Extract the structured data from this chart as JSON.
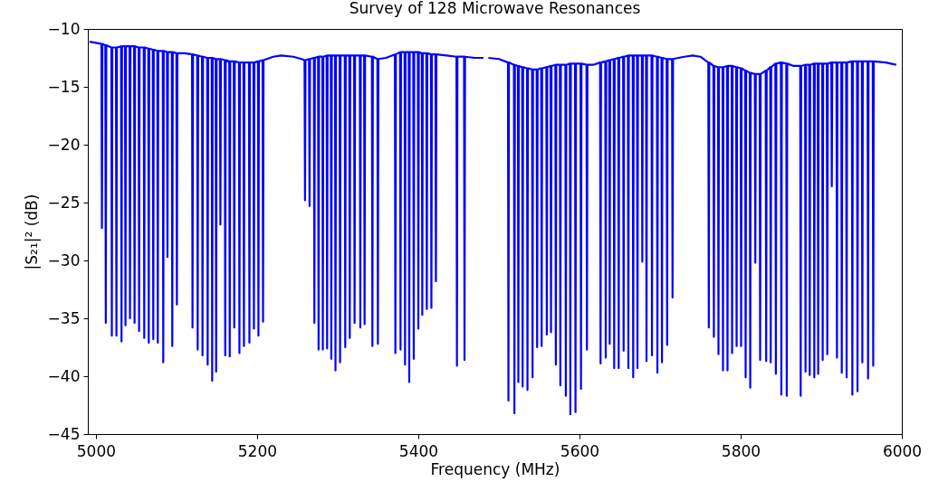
{
  "chart_data": {
    "type": "line",
    "title": "Survey of 128 Microwave Resonances",
    "xlabel": "Frequency (MHz)",
    "ylabel": "|S₂₁|²  (dB)",
    "xlim": [
      4990,
      6000
    ],
    "xticks": [
      5000,
      5200,
      5400,
      5600,
      5800,
      6000
    ],
    "ylim": [
      -45,
      -10
    ],
    "yticks": [
      -45,
      -40,
      -35,
      -30,
      -25,
      -20,
      -15,
      -10
    ],
    "grid": false,
    "line_style": "solid",
    "x": [
      4992,
      5000,
      5006.9,
      5007.5,
      5008.1,
      5011.7,
      5012.3,
      5012.9,
      5019.2,
      5019.8,
      5020.4,
      5024.9,
      5025.5,
      5026.1,
      5031.2,
      5031.8,
      5032.4,
      5036.1,
      5036.7,
      5037.3,
      5041.7,
      5042.3,
      5042.9,
      5047.4,
      5048.0,
      5048.6,
      5053.0,
      5053.6,
      5054.2,
      5059.4,
      5060.0,
      5060.6,
      5065.0,
      5065.6,
      5066.2,
      5070.6,
      5071.2,
      5071.8,
      5076.2,
      5076.8,
      5077.4,
      5083.0,
      5083.6,
      5084.2,
      5088.2,
      5088.8,
      5089.4,
      5094.2,
      5094.8,
      5095.4,
      5099.9,
      5100.5,
      5101.1,
      5110,
      5119.3,
      5119.9,
      5120.5,
      5125.7,
      5126.3,
      5126.9,
      5131.7,
      5132.3,
      5132.9,
      5138.1,
      5138.7,
      5139.3,
      5143.7,
      5144.3,
      5144.9,
      5148.6,
      5149.2,
      5149.8,
      5153.9,
      5154.5,
      5155.1,
      5159.9,
      5160.5,
      5161.1,
      5165.5,
      5166.1,
      5166.7,
      5171.1,
      5171.7,
      5172.3,
      5177.5,
      5178.1,
      5178.7,
      5183.1,
      5183.7,
      5184.3,
      5189.9,
      5190.5,
      5191.1,
      5195.5,
      5196.1,
      5196.7,
      5201.1,
      5201.7,
      5202.3,
      5206.8,
      5207.4,
      5208.0,
      5220,
      5230,
      5245,
      5255,
      5258.9,
      5259.5,
      5260.1,
      5264.5,
      5265.1,
      5265.7,
      5270.5,
      5271.1,
      5271.7,
      5275.7,
      5276.3,
      5276.9,
      5281.0,
      5281.6,
      5282.2,
      5286.3,
      5286.9,
      5287.5,
      5291.5,
      5292.1,
      5292.7,
      5296.7,
      5297.3,
      5297.9,
      5302.4,
      5303.0,
      5303.6,
      5308.8,
      5309.4,
      5310.0,
      5314.4,
      5315.0,
      5315.6,
      5320.4,
      5321.0,
      5321.6,
      5327.5,
      5328.1,
      5328.7,
      5332.8,
      5333.4,
      5334.0,
      5342.5,
      5343.1,
      5343.7,
      5349.3,
      5349.9,
      5350.5,
      5360,
      5371.0,
      5371.6,
      5372.2,
      5377.4,
      5378.0,
      5378.6,
      5383.0,
      5383.6,
      5384.2,
      5388.2,
      5388.8,
      5389.4,
      5393.8,
      5394.4,
      5395.0,
      5399.5,
      5400.1,
      5400.7,
      5404.4,
      5405.0,
      5405.6,
      5410.0,
      5410.6,
      5411.2,
      5415.7,
      5416.3,
      5416.9,
      5421.3,
      5421.9,
      5422.5,
      5435,
      5447.4,
      5448.0,
      5448.6,
      5456.8,
      5457.4,
      5458.0,
      5470,
      5481,
      5484,
      5487,
      5500,
      5511.3,
      5511.9,
      5512.5,
      5518.7,
      5519.3,
      5519.9,
      5523.6,
      5524.2,
      5524.8,
      5528.9,
      5529.5,
      5530.1,
      5534.9,
      5535.5,
      5536.1,
      5541.2,
      5541.8,
      5542.4,
      5546.9,
      5547.5,
      5548.1,
      5552.5,
      5553.1,
      5553.7,
      5558.9,
      5559.5,
      5560.1,
      5564.1,
      5564.7,
      5565.3,
      5570.1,
      5570.7,
      5571.3,
      5575.7,
      5576.3,
      5576.9,
      5582.5,
      5583.1,
      5583.7,
      5588.1,
      5588.7,
      5589.3,
      5594.5,
      5595.1,
      5595.7,
      5601.3,
      5601.9,
      5602.5,
      5608.7,
      5609.3,
      5609.9,
      5617,
      5625.6,
      5626.2,
      5626.8,
      5632.0,
      5632.6,
      5633.2,
      5636.9,
      5637.5,
      5638.1,
      5642.5,
      5643.1,
      5643.7,
      5648.1,
      5648.7,
      5649.3,
      5654.2,
      5654.8,
      5655.4,
      5660.1,
      5660.7,
      5661.3,
      5666.1,
      5666.7,
      5667.3,
      5671.4,
      5672.0,
      5672.6,
      5677.4,
      5678.0,
      5678.6,
      5682.6,
      5683.2,
      5683.8,
      5689.4,
      5690.0,
      5690.6,
      5696.1,
      5696.7,
      5697.3,
      5701.8,
      5702.4,
      5703.0,
      5708.2,
      5708.8,
      5709.4,
      5714.9,
      5715.5,
      5716.1,
      5730,
      5740,
      5750,
      5759.9,
      5760.5,
      5761.1,
      5766.2,
      5766.8,
      5767.4,
      5771.9,
      5772.5,
      5773.1,
      5777.5,
      5778.1,
      5778.7,
      5783.1,
      5783.7,
      5784.3,
      5788.8,
      5789.4,
      5790.0,
      5794.4,
      5795.0,
      5795.6,
      5800.0,
      5800.6,
      5801.2,
      5805.6,
      5806.2,
      5806.8,
      5811.3,
      5811.9,
      5812.5,
      5817.6,
      5818.2,
      5818.8,
      5823.6,
      5824.2,
      5824.8,
      5831.1,
      5831.7,
      5832.3,
      5836.7,
      5837.3,
      5837.9,
      5843.1,
      5843.7,
      5844.3,
      5849.9,
      5850.5,
      5851.1,
      5856.6,
      5857.2,
      5857.8,
      5866,
      5873.9,
      5874.5,
      5875.1,
      5879.9,
      5880.5,
      5881.1,
      5885.1,
      5885.7,
      5886.3,
      5890.8,
      5891.4,
      5892.0,
      5895.6,
      5896.2,
      5896.8,
      5901.2,
      5901.8,
      5902.4,
      5906.9,
      5907.5,
      5908.1,
      5912.5,
      5913.1,
      5913.7,
      5918.9,
      5919.5,
      5920.1,
      5924.9,
      5925.5,
      5926.1,
      5930.9,
      5931.5,
      5932.1,
      5938.0,
      5938.6,
      5939.2,
      5944.4,
      5945.0,
      5945.6,
      5950.4,
      5951.0,
      5951.6,
      5957.5,
      5958.1,
      5958.7,
      5963.9,
      5964.5,
      5965.1,
      5980,
      5993
    ],
    "series": [
      {
        "color": "#0000ff",
        "values": [
          -11.1,
          -11.2,
          -11.3,
          -27.2,
          -11.3,
          -11.4,
          -35.4,
          -11.4,
          -11.6,
          -36.5,
          -11.6,
          -11.6,
          -36.5,
          -11.6,
          -11.5,
          -37.0,
          -11.5,
          -11.5,
          -35.6,
          -11.5,
          -11.5,
          -35.0,
          -11.5,
          -11.5,
          -35.4,
          -11.5,
          -11.6,
          -36.1,
          -11.6,
          -11.6,
          -36.7,
          -11.6,
          -11.7,
          -37.1,
          -11.7,
          -11.8,
          -36.8,
          -11.8,
          -11.9,
          -37.1,
          -11.9,
          -11.9,
          -38.8,
          -11.9,
          -12.0,
          -29.7,
          -12.0,
          -12.0,
          -37.4,
          -12.0,
          -12.1,
          -33.8,
          -12.1,
          -12.1,
          -12.2,
          -35.8,
          -12.2,
          -12.3,
          -37.7,
          -12.3,
          -12.4,
          -38.2,
          -12.4,
          -12.5,
          -39.0,
          -12.5,
          -12.5,
          -40.4,
          -12.5,
          -12.6,
          -39.6,
          -12.6,
          -12.6,
          -26.9,
          -12.6,
          -12.7,
          -38.2,
          -12.7,
          -12.8,
          -38.3,
          -12.8,
          -12.8,
          -35.8,
          -12.8,
          -12.9,
          -38.0,
          -12.9,
          -12.9,
          -37.4,
          -12.9,
          -12.9,
          -37.1,
          -12.9,
          -12.9,
          -35.9,
          -12.9,
          -12.8,
          -36.5,
          -12.8,
          -12.7,
          -35.3,
          -12.7,
          -12.4,
          -12.3,
          -12.4,
          -12.6,
          -12.7,
          -24.8,
          -12.7,
          -12.6,
          -25.3,
          -12.6,
          -12.5,
          -35.4,
          -12.5,
          -12.4,
          -37.7,
          -12.4,
          -12.4,
          -37.7,
          -12.4,
          -12.3,
          -37.6,
          -12.3,
          -12.3,
          -38.5,
          -12.3,
          -12.3,
          -39.5,
          -12.3,
          -12.3,
          -38.8,
          -12.3,
          -12.3,
          -37.5,
          -12.3,
          -12.3,
          -36.7,
          -12.3,
          -12.3,
          -35.4,
          -12.3,
          -12.3,
          -35.8,
          -12.3,
          -12.3,
          -35.5,
          -12.3,
          -12.4,
          -37.4,
          -12.4,
          -12.6,
          -37.2,
          -12.6,
          -12.5,
          -12.2,
          -38.0,
          -12.2,
          -12.0,
          -37.7,
          -12.0,
          -12.0,
          -39.0,
          -12.0,
          -12.0,
          -40.5,
          -12.0,
          -12.0,
          -38.5,
          -12.0,
          -12.0,
          -35.9,
          -12.0,
          -12.1,
          -34.7,
          -12.1,
          -12.1,
          -34.2,
          -12.1,
          -12.2,
          -34.1,
          -12.2,
          -12.2,
          -31.8,
          -12.2,
          -12.3,
          -12.4,
          -39.1,
          -12.4,
          -12.4,
          -38.6,
          -12.4,
          -12.5,
          -12.5,
          null,
          -12.5,
          -12.6,
          -12.9,
          -42.1,
          -12.9,
          -13.1,
          -43.2,
          -13.1,
          -13.2,
          -40.5,
          -13.2,
          -13.3,
          -40.9,
          -13.3,
          -13.4,
          -41.2,
          -13.4,
          -13.5,
          -40.1,
          -13.5,
          -13.5,
          -37.5,
          -13.5,
          -13.4,
          -37.4,
          -13.4,
          -13.3,
          -36.4,
          -13.3,
          -13.2,
          -36.2,
          -13.2,
          -13.1,
          -39.0,
          -13.1,
          -13.1,
          -40.8,
          -13.1,
          -13.1,
          -41.7,
          -13.1,
          -13.0,
          -43.3,
          -13.0,
          -13.0,
          -43.1,
          -13.0,
          -13.0,
          -41.1,
          -13.0,
          -13.1,
          -37.7,
          -13.1,
          -13.1,
          -12.9,
          -38.9,
          -12.9,
          -12.8,
          -38.4,
          -12.8,
          -12.7,
          -37.2,
          -12.7,
          -12.6,
          -39.3,
          -12.6,
          -12.5,
          -39.3,
          -12.5,
          -12.4,
          -37.8,
          -12.4,
          -12.3,
          -39.3,
          -12.3,
          -12.3,
          -40.1,
          -12.3,
          -12.3,
          -39.3,
          -12.3,
          -12.3,
          -30.1,
          -12.3,
          -12.3,
          -38.7,
          -12.3,
          -12.3,
          -38.2,
          -12.3,
          -12.4,
          -39.7,
          -12.4,
          -12.5,
          -38.8,
          -12.5,
          -12.6,
          -37.3,
          -12.6,
          -12.6,
          -33.2,
          -12.6,
          -12.4,
          -12.3,
          -12.4,
          -12.9,
          -35.8,
          -12.9,
          -13.2,
          -36.6,
          -13.2,
          -13.3,
          -38.1,
          -13.3,
          -13.3,
          -39.5,
          -13.3,
          -13.2,
          -39.5,
          -13.2,
          -13.2,
          -38.0,
          -13.2,
          -13.3,
          -37.4,
          -13.3,
          -13.4,
          -37.4,
          -13.4,
          -13.6,
          -40.1,
          -13.6,
          -13.8,
          -41.0,
          -13.8,
          -13.9,
          -30.2,
          -13.9,
          -13.9,
          -38.6,
          -13.9,
          -13.6,
          -38.7,
          -13.6,
          -13.3,
          -38.8,
          -13.3,
          -13.0,
          -39.8,
          -13.0,
          -12.9,
          -41.6,
          -12.9,
          -13.0,
          -41.7,
          -13.0,
          -13.2,
          -13.2,
          -41.7,
          -13.2,
          -13.1,
          -39.6,
          -13.1,
          -13.1,
          -39.9,
          -13.1,
          -13.0,
          -40.1,
          -13.0,
          -13.0,
          -39.8,
          -13.0,
          -13.0,
          -38.6,
          -13.0,
          -13.0,
          -38.1,
          -13.0,
          -12.9,
          -23.6,
          -12.9,
          -12.9,
          -38.4,
          -12.9,
          -12.9,
          -39.7,
          -12.9,
          -12.9,
          -40.1,
          -12.9,
          -12.8,
          -41.6,
          -12.8,
          -12.8,
          -41.3,
          -12.8,
          -12.8,
          -38.8,
          -12.8,
          -12.8,
          -40.2,
          -12.8,
          -12.8,
          -39.1,
          -12.8,
          -12.9,
          -13.1
        ]
      }
    ]
  }
}
